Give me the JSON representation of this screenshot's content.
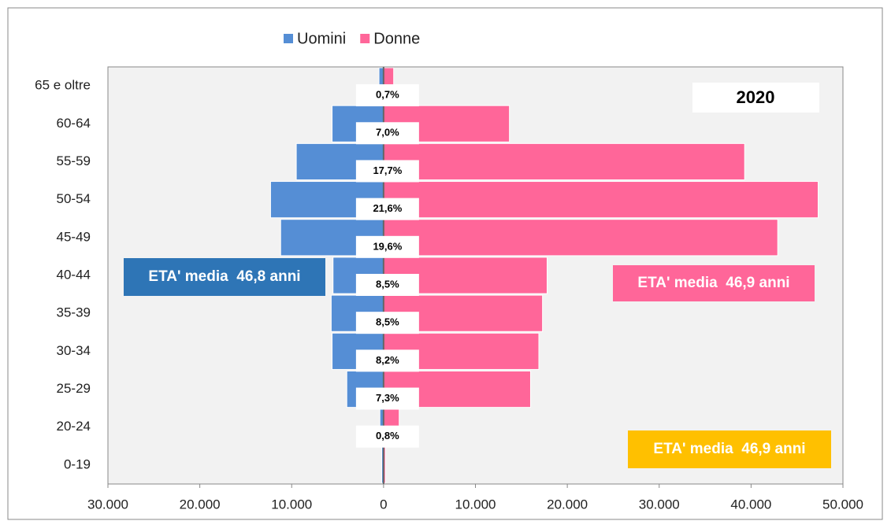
{
  "chart_data": {
    "type": "pyramid",
    "categories": [
      "65 e oltre",
      "60-64",
      "55-59",
      "50-54",
      "45-49",
      "40-44",
      "35-39",
      "30-34",
      "25-29",
      "20-24",
      "0-19"
    ],
    "series": [
      {
        "name": "Uomini",
        "color": "#558ed5",
        "values": [
          -500,
          -5600,
          -9500,
          -12300,
          -11200,
          -5500,
          -5700,
          -5600,
          -4000,
          -400,
          -200
        ]
      },
      {
        "name": "Donne",
        "color": "#ff6699",
        "values": [
          1100,
          13700,
          39300,
          47300,
          42900,
          17800,
          17300,
          16900,
          16000,
          1700,
          200
        ]
      }
    ],
    "percent_labels": [
      "0,7%",
      "7,0%",
      "17,7%",
      "21,6%",
      "19,6%",
      "8,5%",
      "8,5%",
      "8,2%",
      "7,3%",
      "0,8%",
      null
    ],
    "xlim": [
      -30000,
      50000
    ],
    "xticks": [
      {
        "value": -30000,
        "label": "30.000"
      },
      {
        "value": -20000,
        "label": "20.000"
      },
      {
        "value": -10000,
        "label": "10.000"
      },
      0,
      {
        "value": 10000,
        "label": "10.000"
      },
      {
        "value": 20000,
        "label": "20.000"
      },
      {
        "value": 30000,
        "label": "30.000"
      },
      {
        "value": 40000,
        "label": "40.000"
      },
      {
        "value": 50000,
        "label": "50.000"
      }
    ],
    "year_label": "2020",
    "annotations": [
      {
        "text": "ETA' media  46,8 anni",
        "color": "#2e75b6"
      },
      {
        "text": "ETA' media  46,9 anni",
        "color": "#ff6699"
      },
      {
        "text": "ETA' media  46,9 anni",
        "color": "#ffc000"
      }
    ],
    "legend": "top"
  }
}
